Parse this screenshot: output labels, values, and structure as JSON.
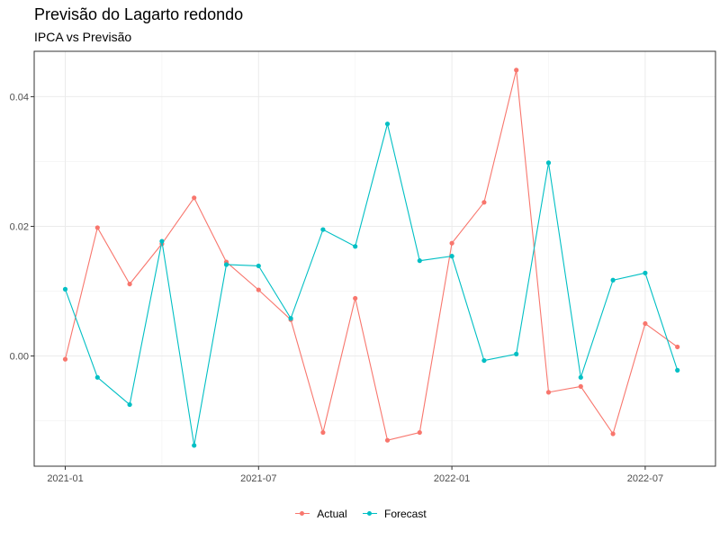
{
  "chart_data": {
    "type": "line",
    "title": "Previsão do Lagarto redondo",
    "subtitle": "IPCA vs Previsão",
    "xlabel": "",
    "ylabel": "",
    "x": [
      "2021-01",
      "2021-02",
      "2021-03",
      "2021-04",
      "2021-05",
      "2021-06",
      "2021-07",
      "2021-08",
      "2021-09",
      "2021-10",
      "2021-11",
      "2021-12",
      "2022-01",
      "2022-02",
      "2022-03",
      "2022-04",
      "2022-05",
      "2022-06",
      "2022-07",
      "2022-08"
    ],
    "x_ticks": [
      "2021-01",
      "2021-07",
      "2022-01",
      "2022-07"
    ],
    "y_ticks": [
      0.0,
      0.02,
      0.04
    ],
    "y_tick_labels": [
      "0.00",
      "0.02",
      "0.04"
    ],
    "ylim": [
      -0.017,
      0.047
    ],
    "grid": true,
    "legend_position": "bottom",
    "series": [
      {
        "name": "Actual",
        "color": "#f8766d",
        "values": [
          -0.0005,
          0.0198,
          0.0111,
          0.0173,
          0.0244,
          0.0145,
          0.0102,
          0.0056,
          -0.0118,
          0.0089,
          -0.013,
          -0.0118,
          0.0174,
          0.0237,
          0.0441,
          -0.0056,
          -0.0047,
          -0.012,
          0.005,
          0.0014
        ]
      },
      {
        "name": "Forecast",
        "color": "#00bfc4",
        "values": [
          0.0103,
          -0.0033,
          -0.0075,
          0.0177,
          -0.0138,
          0.0141,
          0.0139,
          0.0058,
          0.0195,
          0.0169,
          0.0358,
          0.0147,
          0.0154,
          -0.0007,
          0.0003,
          0.0298,
          -0.0033,
          0.0117,
          0.0128,
          -0.0022
        ]
      }
    ]
  }
}
